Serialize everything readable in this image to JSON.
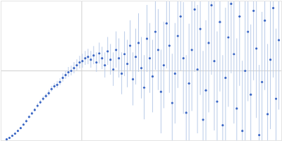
{
  "chart_data": {
    "type": "scatter",
    "x": [
      8,
      12,
      16,
      20,
      24,
      28,
      32,
      36,
      40,
      44,
      48,
      52,
      56,
      60,
      64,
      68,
      72,
      76,
      80,
      84,
      88,
      92,
      96,
      100,
      104,
      108,
      112,
      116,
      120,
      124,
      128,
      132,
      136,
      140,
      144,
      148,
      152,
      156,
      160,
      164,
      168,
      172,
      176,
      180,
      184,
      188,
      192,
      196,
      200,
      204,
      208,
      212,
      216,
      220,
      224,
      228,
      232,
      236,
      240,
      244,
      248,
      252,
      256,
      260,
      264,
      268,
      272,
      276,
      280,
      284,
      288,
      292,
      296,
      300,
      304,
      308,
      312,
      316,
      320,
      324,
      328,
      332,
      336,
      340,
      344,
      348,
      352,
      356,
      360,
      364,
      368,
      372,
      376,
      380,
      384,
      388,
      392,
      396
    ],
    "values": [
      2,
      4,
      7,
      10,
      14,
      18,
      23,
      28,
      34,
      39,
      44,
      50,
      55,
      60,
      64,
      68,
      74,
      78,
      80,
      84,
      90,
      94,
      98,
      100,
      104,
      108,
      112,
      114,
      118,
      120,
      116,
      122,
      112,
      125,
      118,
      108,
      128,
      116,
      102,
      130,
      118,
      96,
      124,
      110,
      136,
      88,
      120,
      140,
      104,
      76,
      146,
      118,
      92,
      156,
      130,
      70,
      108,
      168,
      136,
      54,
      96,
      150,
      178,
      118,
      40,
      82,
      130,
      188,
      102,
      160,
      30,
      72,
      140,
      194,
      114,
      56,
      170,
      22,
      90,
      148,
      196,
      124,
      46,
      178,
      14,
      100,
      156,
      66,
      186,
      132,
      8,
      84,
      172,
      38,
      116,
      190,
      60,
      144
    ],
    "errors": [
      1,
      1,
      1,
      1,
      1,
      1,
      2,
      2,
      2,
      2,
      2,
      3,
      3,
      3,
      3,
      4,
      4,
      4,
      5,
      5,
      6,
      6,
      7,
      7,
      8,
      8,
      9,
      10,
      10,
      11,
      12,
      13,
      14,
      15,
      16,
      18,
      20,
      22,
      24,
      26,
      28,
      30,
      32,
      34,
      36,
      38,
      40,
      42,
      44,
      46,
      48,
      50,
      52,
      55,
      58,
      60,
      62,
      65,
      68,
      70,
      72,
      75,
      78,
      80,
      82,
      85,
      88,
      90,
      92,
      95,
      98,
      100,
      100,
      100,
      100,
      100,
      100,
      100,
      100,
      100,
      100,
      100,
      100,
      100,
      100,
      100,
      100,
      100,
      100,
      100,
      100,
      100,
      100,
      100,
      100,
      100,
      100,
      100
    ],
    "color": "#3a66c4",
    "xlim": [
      0,
      400
    ],
    "ylim": [
      0,
      200
    ],
    "xticks": [
      115
    ],
    "yticks": [
      100
    ],
    "grid": true,
    "tick_labels": false,
    "marker": "circle"
  }
}
